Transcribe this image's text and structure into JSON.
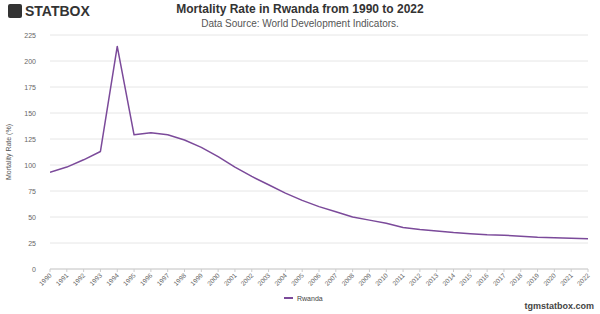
{
  "chart_data": {
    "type": "line",
    "title": "Mortality Rate in Rwanda from 1990 to 2022",
    "subtitle": "Data Source: World Development Indicators.",
    "y_label": "Mortality Rate (%)",
    "annotations": [
      "STATBOX",
      "tgmstatbox.com"
    ],
    "x": [
      1990,
      1991,
      1992,
      1993,
      1994,
      1995,
      1996,
      1997,
      1998,
      1999,
      2000,
      2001,
      2002,
      2003,
      2004,
      2005,
      2006,
      2007,
      2008,
      2009,
      2010,
      2011,
      2012,
      2013,
      2014,
      2015,
      2016,
      2017,
      2018,
      2019,
      2020,
      2021,
      2022
    ],
    "series": [
      {
        "name": "Rwanda",
        "color": "#7b4a9a",
        "values": [
          93,
          98,
          105,
          113,
          214,
          129,
          131,
          129,
          124,
          117,
          108,
          98,
          89,
          81,
          73,
          66,
          60,
          55,
          50,
          47,
          44,
          40,
          38,
          36.5,
          35,
          34,
          33,
          32.5,
          31.5,
          30.5,
          30,
          29.5,
          29
        ]
      }
    ],
    "xlim": [
      1990,
      2022
    ],
    "xticks": [
      1990,
      1991,
      1992,
      1993,
      1994,
      1995,
      1996,
      1997,
      1998,
      1999,
      2000,
      2001,
      2002,
      2003,
      2004,
      2005,
      2006,
      2007,
      2008,
      2009,
      2010,
      2011,
      2012,
      2013,
      2014,
      2015,
      2016,
      2017,
      2018,
      2019,
      2020,
      2021,
      2022
    ],
    "ylim": [
      0,
      225
    ],
    "yticks": [
      0,
      25,
      50,
      75,
      100,
      125,
      150,
      175,
      200,
      225
    ],
    "grid": true,
    "legend": "bottom"
  }
}
